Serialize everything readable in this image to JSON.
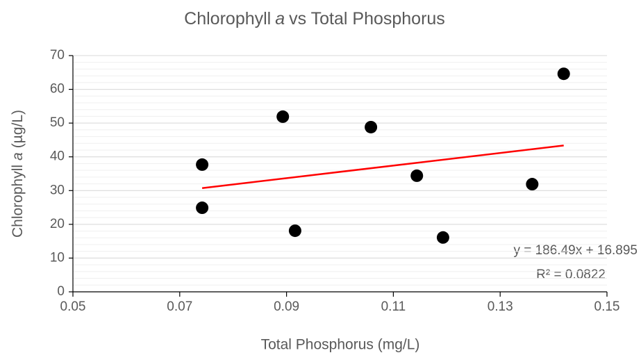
{
  "chart_data": {
    "type": "scatter",
    "title": [
      "Chlorophyll",
      "a",
      "vs Total Phosphorus"
    ],
    "x_label": "Total Phosphorus (mg/L)",
    "y_label": [
      "Chlorophyll",
      "a",
      "(µg/L)"
    ],
    "x": [
      0.0742,
      0.0742,
      0.0893,
      0.0916,
      0.1058,
      0.1144,
      0.1193,
      0.136,
      0.1419
    ],
    "y": [
      37.7,
      24.9,
      51.9,
      18.1,
      48.8,
      34.4,
      16.1,
      31.9,
      64.6
    ],
    "color": "#000000",
    "xlim": [
      0.05,
      0.15
    ],
    "xticks": [
      0.05,
      0.07,
      0.09,
      0.11,
      0.13,
      0.15
    ],
    "ylim": [
      0,
      70
    ],
    "yticks": [
      0,
      10,
      20,
      30,
      40,
      50,
      60,
      70
    ],
    "grid": true,
    "minor_grid_step": 2,
    "trendline": {
      "x": [
        0.0742,
        0.1419
      ],
      "y": [
        30.73,
        43.36
      ],
      "color": "#ff0000"
    },
    "annotations": [
      "y = 186.49x + 16.895",
      "R² = 0.0822"
    ]
  }
}
